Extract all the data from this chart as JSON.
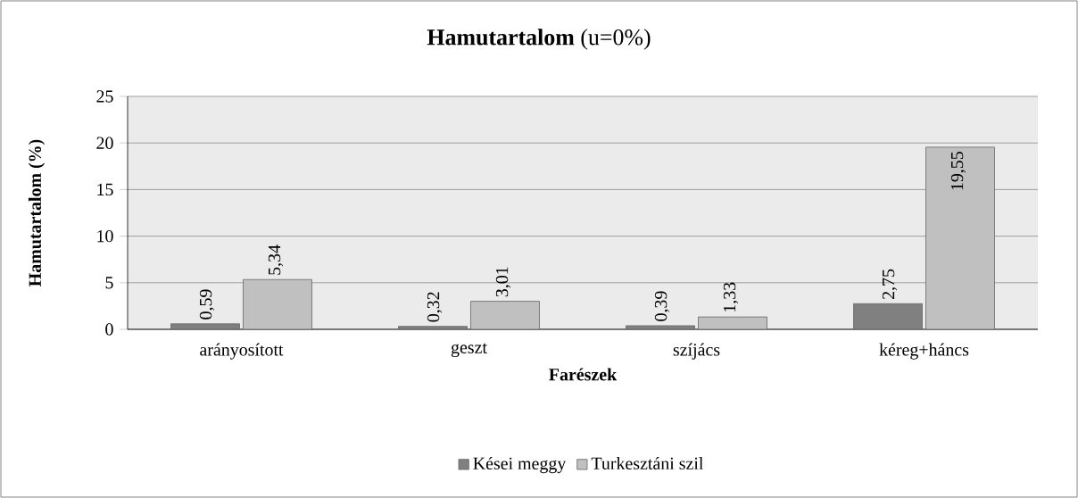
{
  "chart_data": {
    "type": "bar",
    "title": "**Hamutartalom** (u=0%)",
    "xlabel": "Farészek",
    "ylabel": "Hamutartalom (%)",
    "categories": [
      "arányosított",
      "geszt",
      "szíjács",
      "kéreg+háncs"
    ],
    "series": [
      {
        "name": "Kései meggy",
        "color": "#808080",
        "values": [
          0.59,
          0.32,
          0.39,
          2.75
        ],
        "value_labels": [
          "0,59",
          "0,32",
          "0,39",
          "2,75"
        ]
      },
      {
        "name": "Turkesztáni szil",
        "color": "#c0c0c0",
        "values": [
          5.34,
          3.01,
          1.33,
          19.55
        ],
        "value_labels": [
          "5,34",
          "3,01",
          "1,33",
          "19,55"
        ]
      }
    ],
    "ylim": [
      0,
      25
    ],
    "yticks": [
      0,
      5,
      10,
      15,
      20,
      25
    ],
    "grid": "y",
    "legend": "bottom"
  }
}
